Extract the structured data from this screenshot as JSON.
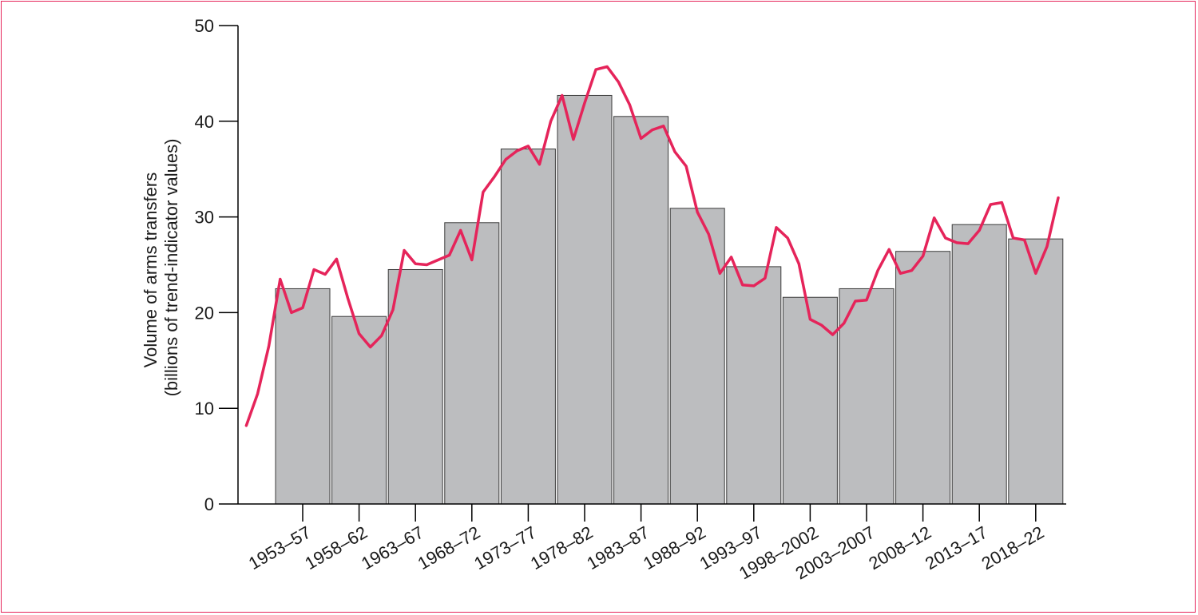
{
  "chart_data": {
    "type": "bar",
    "ylabel_lines": [
      "Volume of arms transfers",
      "(billions of trend-indicator values)"
    ],
    "ylim": [
      0,
      50
    ],
    "yticks": [
      "0",
      "10",
      "20",
      "30",
      "40",
      "50"
    ],
    "categories": [
      "1953–57",
      "1958–62",
      "1963–67",
      "1968–72",
      "1973–77",
      "1978–82",
      "1983–87",
      "1988–92",
      "1993–97",
      "1998–2002",
      "2003–2007",
      "2008–12",
      "2013–17",
      "2018–22"
    ],
    "series": [
      {
        "type": "bar",
        "values": [
          22.5,
          19.6,
          24.5,
          29.4,
          37.1,
          42.7,
          40.5,
          30.9,
          24.8,
          21.6,
          22.5,
          26.4,
          29.2,
          27.7
        ]
      },
      {
        "type": "line",
        "x": [
          1950,
          1951,
          1952,
          1953,
          1954,
          1955,
          1956,
          1957,
          1958,
          1959,
          1960,
          1961,
          1962,
          1963,
          1964,
          1965,
          1966,
          1967,
          1968,
          1969,
          1970,
          1971,
          1972,
          1973,
          1974,
          1975,
          1976,
          1977,
          1978,
          1979,
          1980,
          1981,
          1982,
          1983,
          1984,
          1985,
          1986,
          1987,
          1988,
          1989,
          1990,
          1991,
          1992,
          1993,
          1994,
          1995,
          1996,
          1997,
          1998,
          1999,
          2000,
          2001,
          2002,
          2003,
          2004,
          2005,
          2006,
          2007,
          2008,
          2009,
          2010,
          2011,
          2012,
          2013,
          2014,
          2015,
          2016,
          2017,
          2018,
          2019,
          2020,
          2021,
          2022
        ],
        "values": [
          8.2,
          11.5,
          16.5,
          23.5,
          20.0,
          20.5,
          24.5,
          24.0,
          25.6,
          21.5,
          17.8,
          16.4,
          17.6,
          20.3,
          26.5,
          25.1,
          25.0,
          25.5,
          26.0,
          28.6,
          25.5,
          32.6,
          34.2,
          36.0,
          36.9,
          37.4,
          35.5,
          40.0,
          42.7,
          38.1,
          41.9,
          45.4,
          45.7,
          44.1,
          41.7,
          38.2,
          39.1,
          39.5,
          36.8,
          35.3,
          30.5,
          28.2,
          24.1,
          25.8,
          22.9,
          22.8,
          23.6,
          28.9,
          27.8,
          25.1,
          19.3,
          18.7,
          17.7,
          18.9,
          21.2,
          21.3,
          24.4,
          26.6,
          24.1,
          24.4,
          25.9,
          29.9,
          27.8,
          27.3,
          27.2,
          28.6,
          31.3,
          31.5,
          27.8,
          27.6,
          24.1,
          26.9,
          32.0
        ]
      }
    ],
    "colors": {
      "bar": "#bcbdbf",
      "line": "#e5245a",
      "frame": "#e5245a"
    }
  }
}
